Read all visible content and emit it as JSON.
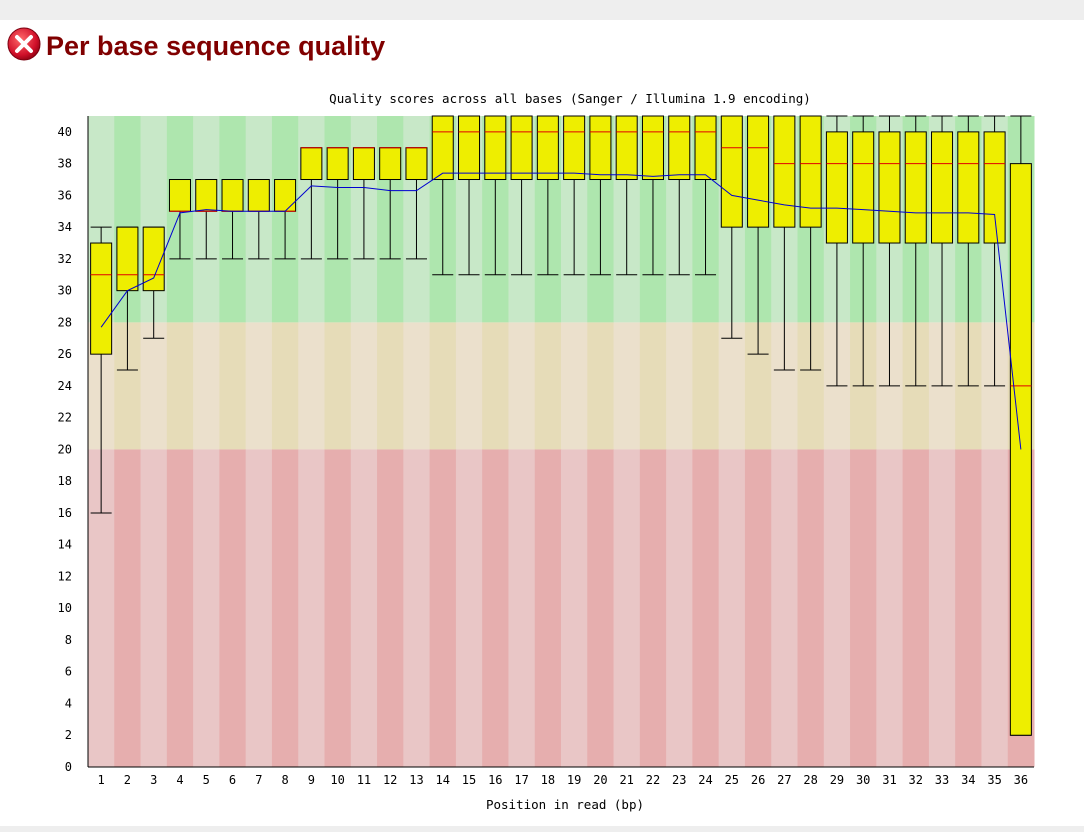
{
  "report": {
    "status": "fail",
    "title": "Per base sequence quality"
  },
  "colors": {
    "fail_icon": "#d0102a",
    "title": "#800000",
    "box_fill": "#eeee00",
    "median": "#e00000",
    "mean_line": "#0000d0"
  },
  "chart_data": {
    "type": "box",
    "title": "Quality scores across all bases (Sanger / Illumina 1.9 encoding)",
    "xlabel": "Position in read (bp)",
    "ylabel": "",
    "ylim": [
      0,
      41
    ],
    "yticks": [
      0,
      2,
      4,
      6,
      8,
      10,
      12,
      14,
      16,
      18,
      20,
      22,
      24,
      26,
      28,
      30,
      32,
      34,
      36,
      38,
      40
    ],
    "categories": [
      "1",
      "2",
      "3",
      "4",
      "5",
      "6",
      "7",
      "8",
      "9",
      "10",
      "11",
      "12",
      "13",
      "14",
      "15",
      "16",
      "17",
      "18",
      "19",
      "20",
      "21",
      "22",
      "23",
      "24",
      "25",
      "26",
      "27",
      "28",
      "29",
      "30",
      "31",
      "32",
      "33",
      "34",
      "35",
      "36"
    ],
    "bands": [
      {
        "name": "good",
        "from": 28,
        "to": 41,
        "color_a": "#aee6ae",
        "color_b": "#c8e8c8"
      },
      {
        "name": "reasonable",
        "from": 20,
        "to": 28,
        "color_a": "#e6dcb8",
        "color_b": "#ebe0cc"
      },
      {
        "name": "poor",
        "from": 0,
        "to": 20,
        "color_a": "#e6aeae",
        "color_b": "#e9c6c6"
      }
    ],
    "boxes": [
      {
        "pos": "1",
        "low": 16,
        "q1": 26,
        "median": 31,
        "q3": 33,
        "high": 34,
        "mean": 27.7
      },
      {
        "pos": "2",
        "low": 25,
        "q1": 30,
        "median": 31,
        "q3": 34,
        "high": 34,
        "mean": 30.0
      },
      {
        "pos": "3",
        "low": 27,
        "q1": 30,
        "median": 31,
        "q3": 34,
        "high": 34,
        "mean": 30.8
      },
      {
        "pos": "4",
        "low": 32,
        "q1": 35,
        "median": 35,
        "q3": 37,
        "high": 37,
        "mean": 34.9
      },
      {
        "pos": "5",
        "low": 32,
        "q1": 35,
        "median": 35,
        "q3": 37,
        "high": 37,
        "mean": 35.1
      },
      {
        "pos": "6",
        "low": 32,
        "q1": 35,
        "median": 35,
        "q3": 37,
        "high": 37,
        "mean": 35.0
      },
      {
        "pos": "7",
        "low": 32,
        "q1": 35,
        "median": 35,
        "q3": 37,
        "high": 37,
        "mean": 35.0
      },
      {
        "pos": "8",
        "low": 32,
        "q1": 35,
        "median": 35,
        "q3": 37,
        "high": 37,
        "mean": 35.0
      },
      {
        "pos": "9",
        "low": 32,
        "q1": 37,
        "median": 39,
        "q3": 39,
        "high": 39,
        "mean": 36.6
      },
      {
        "pos": "10",
        "low": 32,
        "q1": 37,
        "median": 39,
        "q3": 39,
        "high": 39,
        "mean": 36.5
      },
      {
        "pos": "11",
        "low": 32,
        "q1": 37,
        "median": 39,
        "q3": 39,
        "high": 39,
        "mean": 36.5
      },
      {
        "pos": "12",
        "low": 32,
        "q1": 37,
        "median": 39,
        "q3": 39,
        "high": 39,
        "mean": 36.3
      },
      {
        "pos": "13",
        "low": 32,
        "q1": 37,
        "median": 39,
        "q3": 39,
        "high": 39,
        "mean": 36.3
      },
      {
        "pos": "14",
        "low": 31,
        "q1": 37,
        "median": 40,
        "q3": 41,
        "high": 41,
        "mean": 37.4
      },
      {
        "pos": "15",
        "low": 31,
        "q1": 37,
        "median": 40,
        "q3": 41,
        "high": 41,
        "mean": 37.4
      },
      {
        "pos": "16",
        "low": 31,
        "q1": 37,
        "median": 40,
        "q3": 41,
        "high": 41,
        "mean": 37.4
      },
      {
        "pos": "17",
        "low": 31,
        "q1": 37,
        "median": 40,
        "q3": 41,
        "high": 41,
        "mean": 37.4
      },
      {
        "pos": "18",
        "low": 31,
        "q1": 37,
        "median": 40,
        "q3": 41,
        "high": 41,
        "mean": 37.4
      },
      {
        "pos": "19",
        "low": 31,
        "q1": 37,
        "median": 40,
        "q3": 41,
        "high": 41,
        "mean": 37.4
      },
      {
        "pos": "20",
        "low": 31,
        "q1": 37,
        "median": 40,
        "q3": 41,
        "high": 41,
        "mean": 37.3
      },
      {
        "pos": "21",
        "low": 31,
        "q1": 37,
        "median": 40,
        "q3": 41,
        "high": 41,
        "mean": 37.3
      },
      {
        "pos": "22",
        "low": 31,
        "q1": 37,
        "median": 40,
        "q3": 41,
        "high": 41,
        "mean": 37.2
      },
      {
        "pos": "23",
        "low": 31,
        "q1": 37,
        "median": 40,
        "q3": 41,
        "high": 41,
        "mean": 37.3
      },
      {
        "pos": "24",
        "low": 31,
        "q1": 37,
        "median": 40,
        "q3": 41,
        "high": 41,
        "mean": 37.3
      },
      {
        "pos": "25",
        "low": 27,
        "q1": 34,
        "median": 39,
        "q3": 41,
        "high": 41,
        "mean": 36.0
      },
      {
        "pos": "26",
        "low": 26,
        "q1": 34,
        "median": 39,
        "q3": 41,
        "high": 41,
        "mean": 35.7
      },
      {
        "pos": "27",
        "low": 25,
        "q1": 34,
        "median": 38,
        "q3": 41,
        "high": 41,
        "mean": 35.4
      },
      {
        "pos": "28",
        "low": 25,
        "q1": 34,
        "median": 38,
        "q3": 41,
        "high": 41,
        "mean": 35.2
      },
      {
        "pos": "29",
        "low": 24,
        "q1": 33,
        "median": 38,
        "q3": 40,
        "high": 41,
        "mean": 35.2
      },
      {
        "pos": "30",
        "low": 24,
        "q1": 33,
        "median": 38,
        "q3": 40,
        "high": 41,
        "mean": 35.1
      },
      {
        "pos": "31",
        "low": 24,
        "q1": 33,
        "median": 38,
        "q3": 40,
        "high": 41,
        "mean": 35.0
      },
      {
        "pos": "32",
        "low": 24,
        "q1": 33,
        "median": 38,
        "q3": 40,
        "high": 41,
        "mean": 34.9
      },
      {
        "pos": "33",
        "low": 24,
        "q1": 33,
        "median": 38,
        "q3": 40,
        "high": 41,
        "mean": 34.9
      },
      {
        "pos": "34",
        "low": 24,
        "q1": 33,
        "median": 38,
        "q3": 40,
        "high": 41,
        "mean": 34.9
      },
      {
        "pos": "35",
        "low": 24,
        "q1": 33,
        "median": 38,
        "q3": 40,
        "high": 41,
        "mean": 34.8
      },
      {
        "pos": "36",
        "low": 2,
        "q1": 2,
        "median": 24,
        "q3": 38,
        "high": 41,
        "mean": 20.0
      }
    ]
  }
}
